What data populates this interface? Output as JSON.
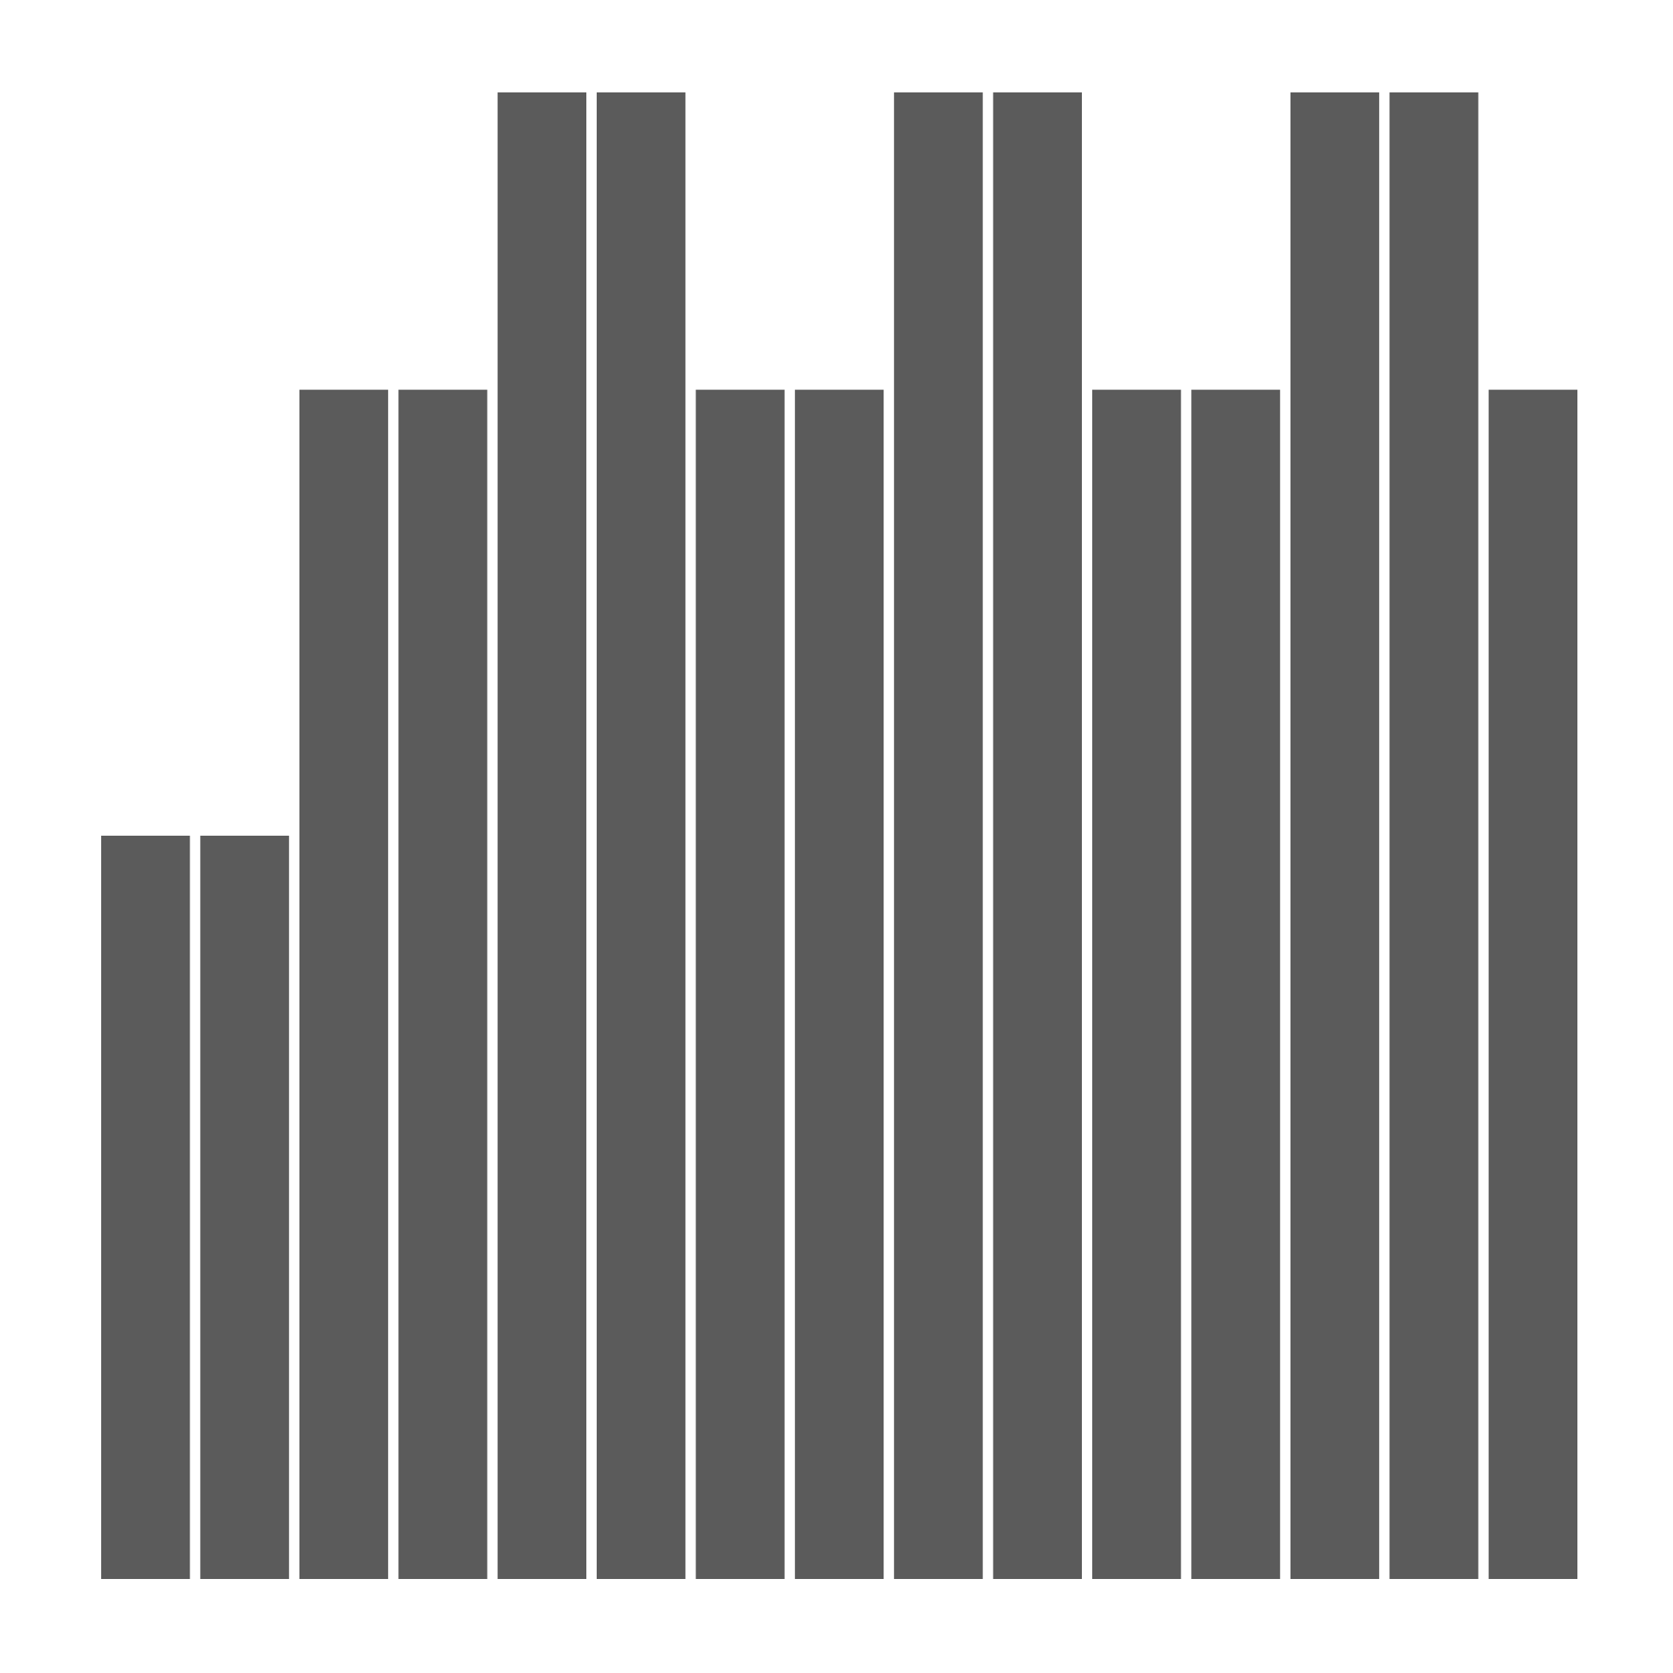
{
  "chart_data": {
    "type": "bar",
    "values": [
      5,
      5,
      8,
      8,
      10,
      10,
      8,
      8,
      10,
      10,
      8,
      8,
      10,
      10,
      8
    ],
    "ylim": [
      0,
      10
    ],
    "title": "",
    "xlabel": "",
    "ylabel": "",
    "grid": false,
    "legend": "none",
    "bar_color": "#5b5b5b",
    "background_color": "#ffffff"
  }
}
